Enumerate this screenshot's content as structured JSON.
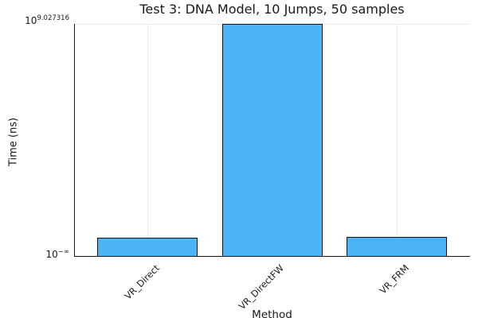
{
  "title": "Test 3: DNA Model, 10 Jumps, 50 samples",
  "axes": {
    "ylabel": "Time (ns)",
    "xlabel": "Method",
    "y_ticks": [
      {
        "base": "10",
        "exp": "9.027316"
      },
      {
        "base": "10",
        "exp": "−∞"
      }
    ]
  },
  "chart_data": {
    "type": "bar",
    "title": "Test 3: DNA Model, 10 Jumps, 50 samples",
    "xlabel": "Method",
    "ylabel": "Time (ns)",
    "categories": [
      "VR_Direct",
      "VR_DirectFW",
      "VR_FRM"
    ],
    "y_scale": "log",
    "y_tick_labels": [
      "10^−∞",
      "10^9.027316"
    ],
    "ylim_top_exponent": 9.027316,
    "peak_value_ns": 1065000000,
    "bar_height_fractions": [
      0.079,
      1.0,
      0.082
    ],
    "grid": true,
    "legend": false,
    "bar_color": "#4bb4f5",
    "bar_edge_color": "#111111",
    "grid_color": "#ededed"
  }
}
